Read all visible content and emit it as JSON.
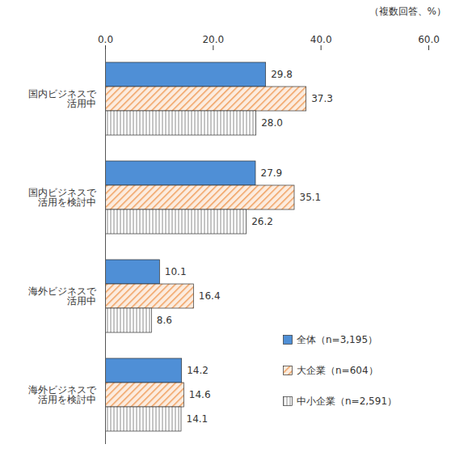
{
  "chart_data": {
    "type": "bar",
    "orientation": "horizontal",
    "annotations": [
      "（複数回答、%）"
    ],
    "categories": [
      "国内ビジネスで\n活用中",
      "国内ビジネスで\n活用を検討中",
      "海外ビジネスで\n活用中",
      "海外ビジネスで\n活用を検討中"
    ],
    "series": [
      {
        "name": "全体（n=3,195）",
        "color": "#4f8fd6",
        "values": [
          29.8,
          27.9,
          10.1,
          14.2
        ],
        "value_labels": [
          "29.8",
          "27.9",
          "10.1",
          "14.2"
        ]
      },
      {
        "name": "大企業（n=604）",
        "color": "#f0a060",
        "values": [
          37.3,
          35.1,
          16.4,
          14.6
        ],
        "value_labels": [
          "37.3",
          "35.1",
          "16.4",
          "14.6"
        ]
      },
      {
        "name": "中小企業（n=2,591）",
        "color": "#8c8c8c",
        "values": [
          28.0,
          26.2,
          8.6,
          14.1
        ],
        "value_labels": [
          "28.0",
          "26.2",
          "8.6",
          "14.1"
        ]
      }
    ],
    "xlim": [
      0,
      60
    ],
    "xticks": [
      {
        "value": 0,
        "label": "0.0"
      },
      {
        "value": 20,
        "label": "20.0"
      },
      {
        "value": 40,
        "label": "40.0"
      },
      {
        "value": 60,
        "label": "60.0"
      }
    ],
    "grid": false,
    "data_labels": true,
    "legend": "bottom-right"
  }
}
